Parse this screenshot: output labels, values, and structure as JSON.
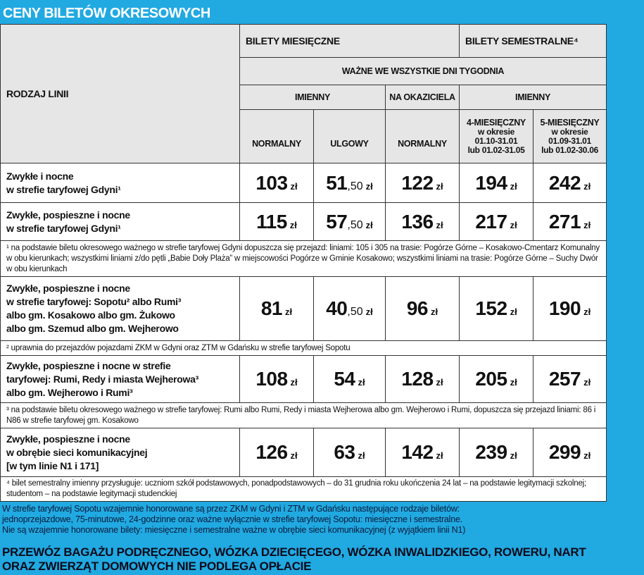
{
  "title": "CENY BILETÓW OKRESOWYCH",
  "header": {
    "line_type": "RODZAJ LINII",
    "monthly": "BILETY MIESIĘCZNE",
    "semester": "BILETY SEMESTRALNE⁴",
    "days": "WAŻNE WE WSZYSTKIE DNI TYGODNIA",
    "named_monthly": "IMIENNY",
    "bearer": "NA OKAZICIELA",
    "named_semester": "IMIENNY",
    "columns": [
      {
        "title": "NORMALNY"
      },
      {
        "title": "ULGOWY"
      },
      {
        "title": "NORMALNY"
      },
      {
        "title": "4-MIESIĘCZNY",
        "lines": [
          "w okresie",
          "01.10-31.01",
          "lub 01.02-31.05"
        ]
      },
      {
        "title": "5-MIESIĘCZNY",
        "lines": [
          "w okresie",
          "01.09-31.01",
          "lub 01.02-30.06"
        ]
      }
    ]
  },
  "rows": [
    {
      "label": [
        "Zwykłe i nocne",
        "w strefie taryfowej Gdyni¹"
      ],
      "prices": [
        {
          "main": "103",
          "currency": "zł"
        },
        {
          "main": "51",
          "fraction": ",50",
          "currency": "zł"
        },
        {
          "main": "122",
          "currency": "zł"
        },
        {
          "main": "194",
          "currency": "zł"
        },
        {
          "main": "242",
          "currency": "zł"
        }
      ]
    },
    {
      "label": [
        "Zwykłe, pospieszne i nocne",
        "w strefie taryfowej Gdyni¹"
      ],
      "prices": [
        {
          "main": "115",
          "currency": "zł"
        },
        {
          "main": "57",
          "fraction": ",50",
          "currency": "zł"
        },
        {
          "main": "136",
          "currency": "zł"
        },
        {
          "main": "217",
          "currency": "zł"
        },
        {
          "main": "271",
          "currency": "zł"
        }
      ]
    },
    {
      "footnote": "¹ na podstawie biletu okresowego ważnego w strefie taryfowej Gdyni dopuszcza się przejazd: liniami: 105 i 305 na trasie: Pogórze Górne – Kosakowo-Cmentarz Komunalny w obu kierunkach; wszystkimi liniami z/do pętli „Babie Doły Plaża” w miejscowości Pogórze w Gminie Kosakowo; wszystkimi liniami na trasie: Pogórze Górne – Suchy Dwór w obu kierunkach"
    },
    {
      "label": [
        "Zwykłe, pospieszne i nocne",
        "w strefie taryfowej: Sopotu² albo Rumi³",
        "albo gm. Kosakowo albo gm. Żukowo",
        "albo gm. Szemud albo gm. Wejherowo"
      ],
      "prices": [
        {
          "main": "81",
          "currency": "zł"
        },
        {
          "main": "40",
          "fraction": ",50",
          "currency": "zł"
        },
        {
          "main": "96",
          "currency": "zł"
        },
        {
          "main": "152",
          "currency": "zł"
        },
        {
          "main": "190",
          "currency": "zł"
        }
      ]
    },
    {
      "footnote": "² uprawnia do przejazdów pojazdami ZKM w Gdyni oraz ZTM w Gdańsku w strefie taryfowej Sopotu"
    },
    {
      "label": [
        "Zwykłe, pospieszne i nocne w strefie",
        "taryfowej: Rumi, Redy i miasta Wejherowa³",
        "albo gm. Wejherowo i Rumi³"
      ],
      "prices": [
        {
          "main": "108",
          "currency": "zł"
        },
        {
          "main": "54",
          "currency": "zł"
        },
        {
          "main": "128",
          "currency": "zł"
        },
        {
          "main": "205",
          "currency": "zł"
        },
        {
          "main": "257",
          "currency": "zł"
        }
      ]
    },
    {
      "footnote": "³ na podstawie biletu okresowego ważnego w strefie taryfowej: Rumi albo Rumi, Redy i miasta Wejherowa albo gm. Wejherowo i Rumi, dopuszcza się przejazd liniami: 86 i N86 w strefie taryfowej gm. Kosakowo"
    },
    {
      "label": [
        "Zwykłe, pospieszne i nocne",
        "w obrębie sieci komunikacyjnej",
        "[w tym linie N1 i 171]"
      ],
      "prices": [
        {
          "main": "126",
          "currency": "zł"
        },
        {
          "main": "63",
          "currency": "zł"
        },
        {
          "main": "142",
          "currency": "zł"
        },
        {
          "main": "239",
          "currency": "zł"
        },
        {
          "main": "299",
          "currency": "zł"
        }
      ]
    },
    {
      "footnote": "⁴ bilet semestralny imienny przysługuje: uczniom szkół podstawowych, ponadpodstawowych – do 31 grudnia roku ukończenia 24 lat – na podstawie legitymacji szkolnej; studentom – na podstawie legitymacji studenckiej"
    }
  ],
  "notes": [
    "W strefie taryfowej Sopotu wzajemnie honorowane są przez ZKM w Gdyni i ZTM w Gdańsku następujące rodzaje biletów:",
    "jednoprzejazdowe, 75-minutowe, 24-godzinne oraz ważne wyłącznie w strefie taryfowej Sopotu: miesięczne i semestralne.",
    "Nie są wzajemnie honorowane bilety: miesięczne i semestralne ważne w obrębie sieci komunikacyjnej (z wyjątkiem linii N1)"
  ],
  "footer": [
    "PRZEWÓZ BAGAŻU PODRĘCZNEGO, WÓZKA DZIECIĘCEGO, WÓZKA INWALIDZKIEGO, ROWERU, NART",
    "ORAZ ZWIERZĄT DOMOWYCH NIE PODLEGA OPŁACIE"
  ]
}
